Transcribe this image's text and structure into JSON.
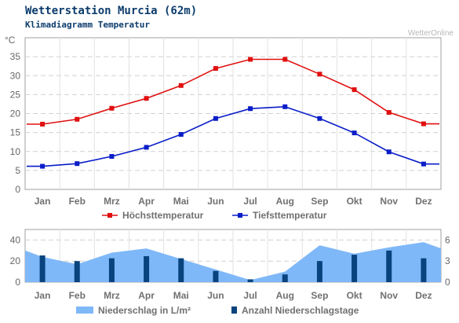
{
  "header": {
    "title": "Wetterstation Murcia (62m)",
    "subtitle": "Klimadiagramm Temperatur",
    "watermark": "WetterOnline"
  },
  "colors": {
    "max_temp": "#e01010",
    "min_temp": "#0a1ec8",
    "precip_area": "#7fb8f8",
    "rain_days": "#08437e",
    "grid": "#d0d0d0"
  },
  "chart_data": [
    {
      "type": "line",
      "title": "",
      "ylabel": "°C",
      "ylim": [
        0,
        40
      ],
      "yticks": [
        0,
        5,
        10,
        15,
        20,
        25,
        30,
        35
      ],
      "grid": true,
      "legend_position": "bottom",
      "categories": [
        "Jan",
        "Feb",
        "Mrz",
        "Apr",
        "Mai",
        "Jun",
        "Jul",
        "Aug",
        "Sep",
        "Okt",
        "Nov",
        "Dez"
      ],
      "series": [
        {
          "name": "Höchsttemperatur",
          "color": "#e01010",
          "values": [
            17.2,
            18.5,
            21.4,
            24.0,
            27.4,
            31.9,
            34.3,
            34.3,
            30.4,
            26.3,
            20.3,
            17.3
          ]
        },
        {
          "name": "Tiefsttemperatur",
          "color": "#0a1ec8",
          "values": [
            6.1,
            6.8,
            8.7,
            11.1,
            14.5,
            18.7,
            21.3,
            21.8,
            18.7,
            14.9,
            9.9,
            6.7
          ]
        }
      ]
    },
    {
      "type": "bar",
      "title": "",
      "ylim_left": [
        0,
        50
      ],
      "yticks_left": [
        0,
        20,
        40
      ],
      "ylim_right": [
        0,
        7.5
      ],
      "yticks_right": [
        0,
        3,
        6
      ],
      "grid": true,
      "legend_position": "bottom",
      "categories": [
        "Jan",
        "Feb",
        "Mrz",
        "Apr",
        "Mai",
        "Jun",
        "Jul",
        "Aug",
        "Sep",
        "Okt",
        "Nov",
        "Dez"
      ],
      "series": [
        {
          "name": "Niederschlag in L/m²",
          "type": "area",
          "axis": "left",
          "color": "#7fb8f8",
          "values": [
            24,
            17,
            28,
            32,
            22,
            12,
            2,
            10,
            35,
            27,
            33,
            38
          ]
        },
        {
          "name": "Anzahl Niederschlagstage",
          "type": "bar",
          "axis": "right",
          "color": "#08437e",
          "values": [
            3.8,
            3.0,
            3.4,
            3.7,
            3.4,
            1.6,
            0.4,
            1.1,
            3.0,
            3.9,
            4.5,
            3.4
          ]
        }
      ]
    }
  ]
}
